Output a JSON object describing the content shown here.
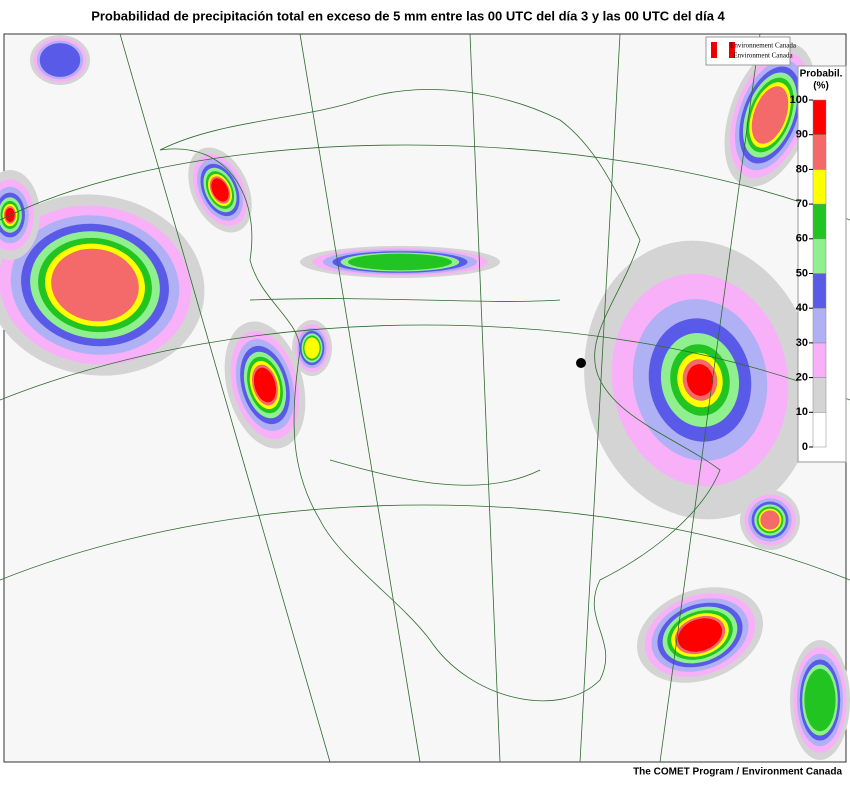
{
  "title": "Probabilidad de precipitación total en exceso de 5 mm entre las 00 UTC del día 3 y las 00 UTC del día 4",
  "logo": {
    "lines": [
      "Environnement Canada",
      "Environment Canada"
    ]
  },
  "legend": {
    "title": [
      "Probabil.",
      "(%)"
    ],
    "ticks": [
      0,
      10,
      20,
      30,
      40,
      50,
      60,
      70,
      80,
      90,
      100
    ],
    "colors": [
      "#ffffff",
      "#d4d4d4",
      "#f8b0f8",
      "#b0b0f4",
      "#5a5ae8",
      "#90f090",
      "#22c422",
      "#ffff00",
      "#f46a6a",
      "#ff0000"
    ]
  },
  "credit": "The COMET Program / Environment Canada"
}
